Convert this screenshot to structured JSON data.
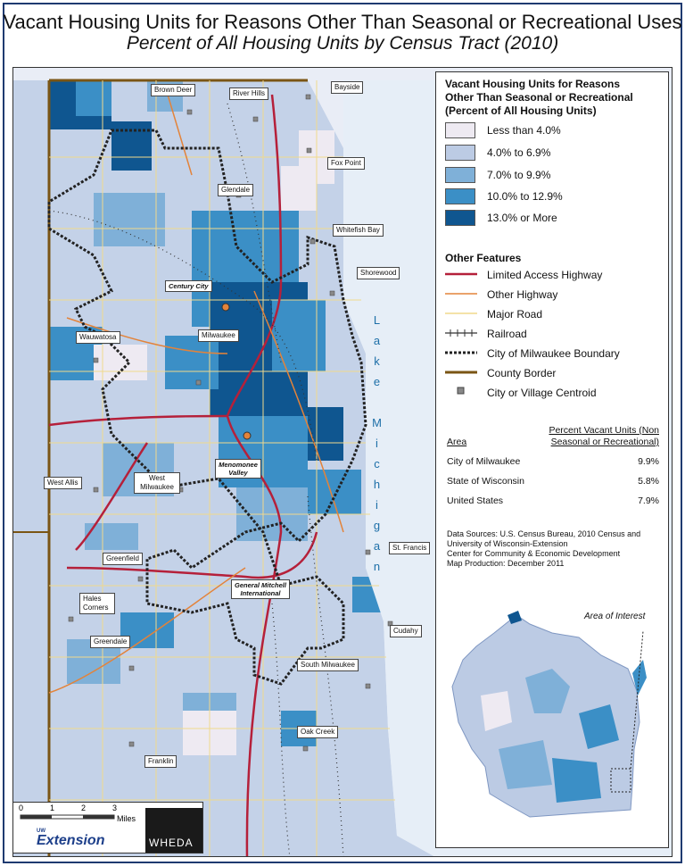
{
  "title": "Vacant Housing Units for Reasons Other Than Seasonal or Recreational Uses",
  "subtitle": "Percent of All Housing Units by Census Tract (2010)",
  "legend": {
    "title_line1": "Vacant Housing Units for Reasons",
    "title_line2": "Other Than Seasonal or Recreational",
    "title_line3": "(Percent of All Housing Units)",
    "classes": [
      {
        "label": "Less than 4.0%",
        "color": "#eeeaf2"
      },
      {
        "label": "4.0% to 6.9%",
        "color": "#bccbe4"
      },
      {
        "label": "7.0% to 9.9%",
        "color": "#7fb0d8"
      },
      {
        "label": "10.0% to 12.9%",
        "color": "#3b8fc6"
      },
      {
        "label": "13.0% or More",
        "color": "#0f5690"
      }
    ],
    "other_features_title": "Other Features",
    "features": [
      {
        "label": "Limited Access Highway",
        "color": "#b5203a"
      },
      {
        "label": "Other Highway",
        "color": "#e3833a"
      },
      {
        "label": "Major Road",
        "color": "#f0d98c"
      },
      {
        "label": "Railroad",
        "color": "#333333"
      },
      {
        "label": "City of Milwaukee Boundary",
        "color": "#222222"
      },
      {
        "label": "County Border",
        "color": "#7a5514"
      },
      {
        "label": "City or Village Centroid",
        "color": "#888888"
      }
    ]
  },
  "table": {
    "header_area": "Area",
    "header_pct_line1": "Percent Vacant Units (Non",
    "header_pct_line2": "Seasonal or Recreational)",
    "rows": [
      {
        "area": "City of Milwaukee",
        "pct": "9.9%"
      },
      {
        "area": "State of Wisconsin",
        "pct": "5.8%"
      },
      {
        "area": "United States",
        "pct": "7.9%"
      }
    ]
  },
  "sources": [
    "Data Sources: U.S. Census Bureau, 2010 Census and",
    "University of Wisconsin-Extension",
    "Center for Community & Economic Development",
    "Map Production: December 2011"
  ],
  "inset": {
    "label": "Area of Interest"
  },
  "lake_label": "Lake Michigan",
  "places": [
    "Brown Deer",
    "River Hills",
    "Bayside",
    "Fox Point",
    "Glendale",
    "Whitefish Bay",
    "Shorewood",
    "Wauwatosa",
    "Milwaukee",
    "West Allis",
    "West Milwaukee",
    "Greenfield",
    "Hales Corners",
    "Greendale",
    "St. Francis",
    "Cudahy",
    "South Milwaukee",
    "Oak Creek",
    "Franklin"
  ],
  "landmarks": [
    "Century City",
    "Menomonee Valley",
    "General Mitchell International"
  ],
  "scale": {
    "ticks": [
      "0",
      "1",
      "2",
      "3"
    ],
    "unit": "Miles"
  },
  "logos": {
    "extension_small": "UW",
    "extension": "Extension",
    "wheda": "WHEDA"
  }
}
